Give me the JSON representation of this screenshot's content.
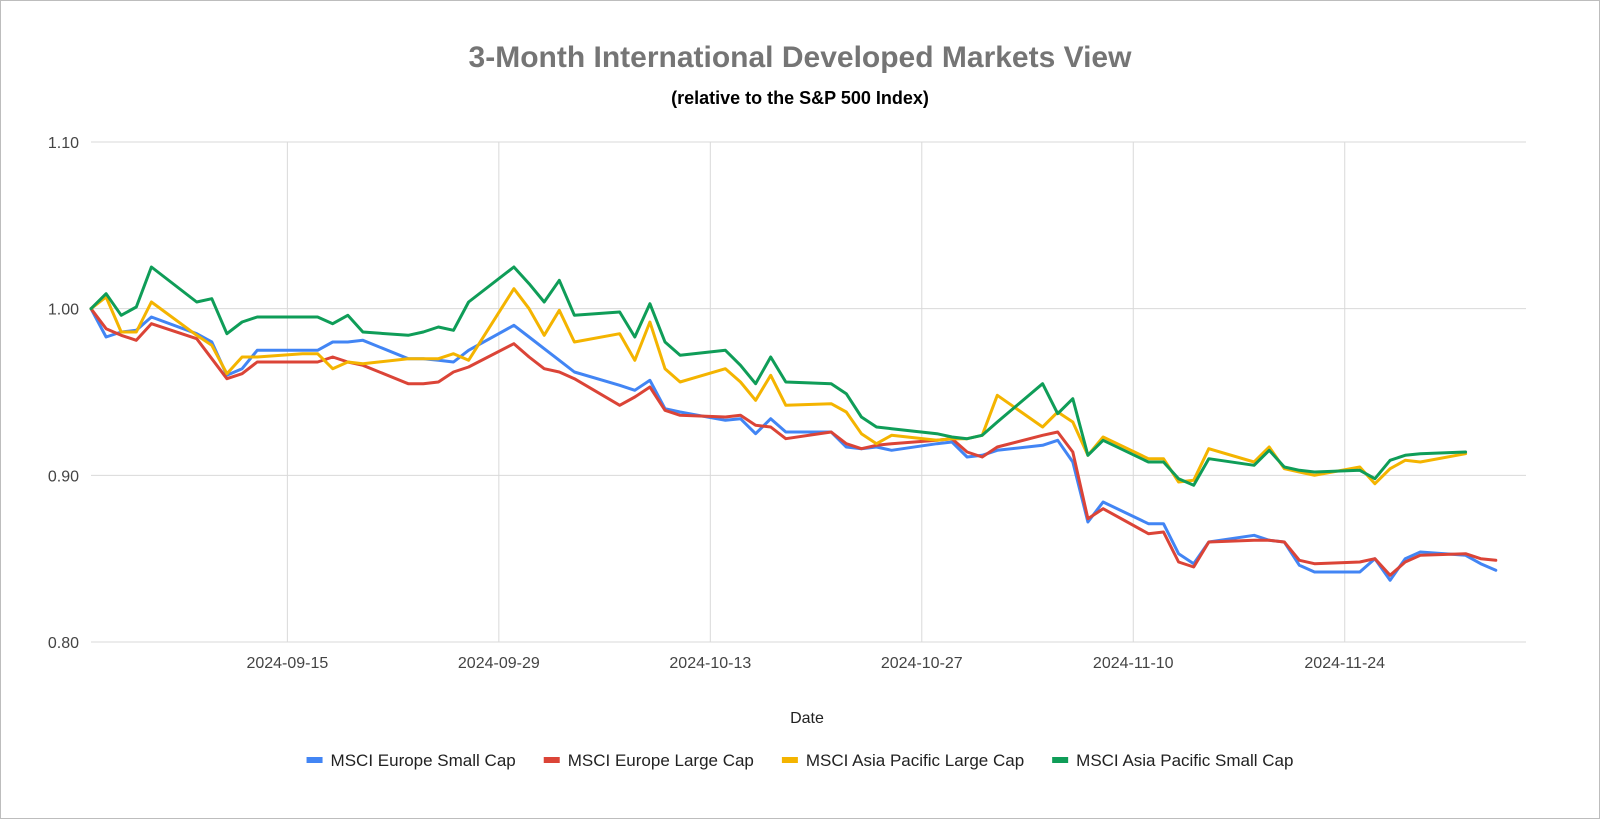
{
  "chart_data": {
    "type": "line",
    "title": "3-Month International Developed Markets View",
    "subtitle": "(relative to the S&P 500 Index)",
    "xlabel": "Date",
    "ylabel": "",
    "ylim": [
      0.8,
      1.1
    ],
    "yticks": [
      "0.80",
      "0.90",
      "1.00",
      "1.10"
    ],
    "xlim": [
      "2024-09-02",
      "2024-12-06"
    ],
    "xticks": [
      "2024-09-15",
      "2024-09-29",
      "2024-10-13",
      "2024-10-27",
      "2024-11-10",
      "2024-11-24"
    ],
    "grid": true,
    "legend_position": "bottom",
    "series": [
      {
        "name": "MSCI Europe Small Cap",
        "color": "#4285f4",
        "points": [
          [
            "2024-09-02",
            1.0
          ],
          [
            "2024-09-03",
            0.983
          ],
          [
            "2024-09-04",
            0.986
          ],
          [
            "2024-09-05",
            0.987
          ],
          [
            "2024-09-06",
            0.995
          ],
          [
            "2024-09-09",
            0.985
          ],
          [
            "2024-09-10",
            0.98
          ],
          [
            "2024-09-11",
            0.96
          ],
          [
            "2024-09-12",
            0.964
          ],
          [
            "2024-09-13",
            0.975
          ],
          [
            "2024-09-16",
            0.975
          ],
          [
            "2024-09-17",
            0.975
          ],
          [
            "2024-09-18",
            0.98
          ],
          [
            "2024-09-19",
            0.98
          ],
          [
            "2024-09-20",
            0.981
          ],
          [
            "2024-09-23",
            0.97
          ],
          [
            "2024-09-24",
            0.97
          ],
          [
            "2024-09-25",
            0.969
          ],
          [
            "2024-09-26",
            0.968
          ],
          [
            "2024-09-27",
            0.975
          ],
          [
            "2024-09-30",
            0.99
          ],
          [
            "2024-10-01",
            0.983
          ],
          [
            "2024-10-02",
            0.976
          ],
          [
            "2024-10-03",
            0.969
          ],
          [
            "2024-10-04",
            0.962
          ],
          [
            "2024-10-07",
            0.954
          ],
          [
            "2024-10-08",
            0.951
          ],
          [
            "2024-10-09",
            0.957
          ],
          [
            "2024-10-10",
            0.94
          ],
          [
            "2024-10-11",
            0.938
          ],
          [
            "2024-10-14",
            0.933
          ],
          [
            "2024-10-15",
            0.934
          ],
          [
            "2024-10-16",
            0.925
          ],
          [
            "2024-10-17",
            0.934
          ],
          [
            "2024-10-18",
            0.926
          ],
          [
            "2024-10-21",
            0.926
          ],
          [
            "2024-10-22",
            0.917
          ],
          [
            "2024-10-23",
            0.916
          ],
          [
            "2024-10-24",
            0.917
          ],
          [
            "2024-10-25",
            0.915
          ],
          [
            "2024-10-28",
            0.919
          ],
          [
            "2024-10-29",
            0.92
          ],
          [
            "2024-10-30",
            0.911
          ],
          [
            "2024-10-31",
            0.912
          ],
          [
            "2024-11-01",
            0.915
          ],
          [
            "2024-11-04",
            0.918
          ],
          [
            "2024-11-05",
            0.921
          ],
          [
            "2024-11-06",
            0.908
          ],
          [
            "2024-11-07",
            0.872
          ],
          [
            "2024-11-08",
            0.884
          ],
          [
            "2024-11-11",
            0.871
          ],
          [
            "2024-11-12",
            0.871
          ],
          [
            "2024-11-13",
            0.853
          ],
          [
            "2024-11-14",
            0.847
          ],
          [
            "2024-11-15",
            0.86
          ],
          [
            "2024-11-18",
            0.864
          ],
          [
            "2024-11-19",
            0.861
          ],
          [
            "2024-11-20",
            0.86
          ],
          [
            "2024-11-21",
            0.846
          ],
          [
            "2024-11-22",
            0.842
          ],
          [
            "2024-11-25",
            0.842
          ],
          [
            "2024-11-26",
            0.85
          ],
          [
            "2024-11-27",
            0.837
          ],
          [
            "2024-11-28",
            0.85
          ],
          [
            "2024-11-29",
            0.854
          ],
          [
            "2024-12-02",
            0.852
          ],
          [
            "2024-12-03",
            0.847
          ],
          [
            "2024-12-04",
            0.843
          ]
        ]
      },
      {
        "name": "MSCI Europe Large Cap",
        "color": "#db4437",
        "points": [
          [
            "2024-09-02",
            1.0
          ],
          [
            "2024-09-03",
            0.988
          ],
          [
            "2024-09-04",
            0.984
          ],
          [
            "2024-09-05",
            0.981
          ],
          [
            "2024-09-06",
            0.991
          ],
          [
            "2024-09-09",
            0.982
          ],
          [
            "2024-09-10",
            0.97
          ],
          [
            "2024-09-11",
            0.958
          ],
          [
            "2024-09-12",
            0.961
          ],
          [
            "2024-09-13",
            0.968
          ],
          [
            "2024-09-16",
            0.968
          ],
          [
            "2024-09-17",
            0.968
          ],
          [
            "2024-09-18",
            0.971
          ],
          [
            "2024-09-19",
            0.968
          ],
          [
            "2024-09-20",
            0.966
          ],
          [
            "2024-09-23",
            0.955
          ],
          [
            "2024-09-24",
            0.955
          ],
          [
            "2024-09-25",
            0.956
          ],
          [
            "2024-09-26",
            0.962
          ],
          [
            "2024-09-27",
            0.965
          ],
          [
            "2024-09-30",
            0.979
          ],
          [
            "2024-10-01",
            0.971
          ],
          [
            "2024-10-02",
            0.964
          ],
          [
            "2024-10-03",
            0.962
          ],
          [
            "2024-10-04",
            0.958
          ],
          [
            "2024-10-07",
            0.942
          ],
          [
            "2024-10-08",
            0.947
          ],
          [
            "2024-10-09",
            0.953
          ],
          [
            "2024-10-10",
            0.939
          ],
          [
            "2024-10-11",
            0.936
          ],
          [
            "2024-10-14",
            0.935
          ],
          [
            "2024-10-15",
            0.936
          ],
          [
            "2024-10-16",
            0.93
          ],
          [
            "2024-10-17",
            0.929
          ],
          [
            "2024-10-18",
            0.922
          ],
          [
            "2024-10-21",
            0.926
          ],
          [
            "2024-10-22",
            0.919
          ],
          [
            "2024-10-23",
            0.916
          ],
          [
            "2024-10-24",
            0.918
          ],
          [
            "2024-10-25",
            0.919
          ],
          [
            "2024-10-28",
            0.921
          ],
          [
            "2024-10-29",
            0.922
          ],
          [
            "2024-10-30",
            0.914
          ],
          [
            "2024-10-31",
            0.911
          ],
          [
            "2024-11-01",
            0.917
          ],
          [
            "2024-11-04",
            0.924
          ],
          [
            "2024-11-05",
            0.926
          ],
          [
            "2024-11-06",
            0.914
          ],
          [
            "2024-11-07",
            0.874
          ],
          [
            "2024-11-08",
            0.88
          ],
          [
            "2024-11-11",
            0.865
          ],
          [
            "2024-11-12",
            0.866
          ],
          [
            "2024-11-13",
            0.848
          ],
          [
            "2024-11-14",
            0.845
          ],
          [
            "2024-11-15",
            0.86
          ],
          [
            "2024-11-18",
            0.861
          ],
          [
            "2024-11-19",
            0.861
          ],
          [
            "2024-11-20",
            0.86
          ],
          [
            "2024-11-21",
            0.849
          ],
          [
            "2024-11-22",
            0.847
          ],
          [
            "2024-11-25",
            0.848
          ],
          [
            "2024-11-26",
            0.85
          ],
          [
            "2024-11-27",
            0.84
          ],
          [
            "2024-11-28",
            0.848
          ],
          [
            "2024-11-29",
            0.852
          ],
          [
            "2024-12-02",
            0.853
          ],
          [
            "2024-12-03",
            0.85
          ],
          [
            "2024-12-04",
            0.849
          ]
        ]
      },
      {
        "name": "MSCI Asia Pacific Large Cap",
        "color": "#f4b400",
        "points": [
          [
            "2024-09-02",
            1.0
          ],
          [
            "2024-09-03",
            1.007
          ],
          [
            "2024-09-04",
            0.986
          ],
          [
            "2024-09-05",
            0.986
          ],
          [
            "2024-09-06",
            1.004
          ],
          [
            "2024-09-09",
            0.984
          ],
          [
            "2024-09-10",
            0.978
          ],
          [
            "2024-09-11",
            0.961
          ],
          [
            "2024-09-12",
            0.971
          ],
          [
            "2024-09-13",
            0.971
          ],
          [
            "2024-09-16",
            0.973
          ],
          [
            "2024-09-17",
            0.973
          ],
          [
            "2024-09-18",
            0.964
          ],
          [
            "2024-09-19",
            0.968
          ],
          [
            "2024-09-20",
            0.967
          ],
          [
            "2024-09-23",
            0.97
          ],
          [
            "2024-09-24",
            0.97
          ],
          [
            "2024-09-25",
            0.97
          ],
          [
            "2024-09-26",
            0.973
          ],
          [
            "2024-09-27",
            0.969
          ],
          [
            "2024-09-30",
            1.012
          ],
          [
            "2024-10-01",
            1.0
          ],
          [
            "2024-10-02",
            0.984
          ],
          [
            "2024-10-03",
            0.999
          ],
          [
            "2024-10-04",
            0.98
          ],
          [
            "2024-10-07",
            0.985
          ],
          [
            "2024-10-08",
            0.969
          ],
          [
            "2024-10-09",
            0.992
          ],
          [
            "2024-10-10",
            0.964
          ],
          [
            "2024-10-11",
            0.956
          ],
          [
            "2024-10-14",
            0.964
          ],
          [
            "2024-10-15",
            0.956
          ],
          [
            "2024-10-16",
            0.945
          ],
          [
            "2024-10-17",
            0.96
          ],
          [
            "2024-10-18",
            0.942
          ],
          [
            "2024-10-21",
            0.943
          ],
          [
            "2024-10-22",
            0.938
          ],
          [
            "2024-10-23",
            0.925
          ],
          [
            "2024-10-24",
            0.919
          ],
          [
            "2024-10-25",
            0.924
          ],
          [
            "2024-10-28",
            0.921
          ],
          [
            "2024-10-29",
            0.922
          ],
          [
            "2024-10-30",
            0.922
          ],
          [
            "2024-10-31",
            0.924
          ],
          [
            "2024-11-01",
            0.948
          ],
          [
            "2024-11-04",
            0.929
          ],
          [
            "2024-11-05",
            0.938
          ],
          [
            "2024-11-06",
            0.932
          ],
          [
            "2024-11-07",
            0.912
          ],
          [
            "2024-11-08",
            0.923
          ],
          [
            "2024-11-11",
            0.91
          ],
          [
            "2024-11-12",
            0.91
          ],
          [
            "2024-11-13",
            0.896
          ],
          [
            "2024-11-14",
            0.897
          ],
          [
            "2024-11-15",
            0.916
          ],
          [
            "2024-11-18",
            0.908
          ],
          [
            "2024-11-19",
            0.917
          ],
          [
            "2024-11-20",
            0.904
          ],
          [
            "2024-11-21",
            0.902
          ],
          [
            "2024-11-22",
            0.9
          ],
          [
            "2024-11-25",
            0.905
          ],
          [
            "2024-11-26",
            0.895
          ],
          [
            "2024-11-27",
            0.904
          ],
          [
            "2024-11-28",
            0.909
          ],
          [
            "2024-11-29",
            0.908
          ],
          [
            "2024-12-02",
            0.913
          ]
        ]
      },
      {
        "name": "MSCI Asia Pacific Small Cap",
        "color": "#0f9d58",
        "points": [
          [
            "2024-09-02",
            1.0
          ],
          [
            "2024-09-03",
            1.009
          ],
          [
            "2024-09-04",
            0.996
          ],
          [
            "2024-09-05",
            1.001
          ],
          [
            "2024-09-06",
            1.025
          ],
          [
            "2024-09-09",
            1.004
          ],
          [
            "2024-09-10",
            1.006
          ],
          [
            "2024-09-11",
            0.985
          ],
          [
            "2024-09-12",
            0.992
          ],
          [
            "2024-09-13",
            0.995
          ],
          [
            "2024-09-16",
            0.995
          ],
          [
            "2024-09-17",
            0.995
          ],
          [
            "2024-09-18",
            0.991
          ],
          [
            "2024-09-19",
            0.996
          ],
          [
            "2024-09-20",
            0.986
          ],
          [
            "2024-09-23",
            0.984
          ],
          [
            "2024-09-24",
            0.986
          ],
          [
            "2024-09-25",
            0.989
          ],
          [
            "2024-09-26",
            0.987
          ],
          [
            "2024-09-27",
            1.004
          ],
          [
            "2024-09-30",
            1.025
          ],
          [
            "2024-10-01",
            1.015
          ],
          [
            "2024-10-02",
            1.004
          ],
          [
            "2024-10-03",
            1.017
          ],
          [
            "2024-10-04",
            0.996
          ],
          [
            "2024-10-07",
            0.998
          ],
          [
            "2024-10-08",
            0.983
          ],
          [
            "2024-10-09",
            1.003
          ],
          [
            "2024-10-10",
            0.98
          ],
          [
            "2024-10-11",
            0.972
          ],
          [
            "2024-10-14",
            0.975
          ],
          [
            "2024-10-15",
            0.966
          ],
          [
            "2024-10-16",
            0.955
          ],
          [
            "2024-10-17",
            0.971
          ],
          [
            "2024-10-18",
            0.956
          ],
          [
            "2024-10-21",
            0.955
          ],
          [
            "2024-10-22",
            0.949
          ],
          [
            "2024-10-23",
            0.935
          ],
          [
            "2024-10-24",
            0.929
          ],
          [
            "2024-10-25",
            0.928
          ],
          [
            "2024-10-28",
            0.925
          ],
          [
            "2024-10-29",
            0.923
          ],
          [
            "2024-10-30",
            0.922
          ],
          [
            "2024-10-31",
            0.924
          ],
          [
            "2024-11-01",
            0.932
          ],
          [
            "2024-11-04",
            0.955
          ],
          [
            "2024-11-05",
            0.937
          ],
          [
            "2024-11-06",
            0.946
          ],
          [
            "2024-11-07",
            0.912
          ],
          [
            "2024-11-08",
            0.921
          ],
          [
            "2024-11-11",
            0.908
          ],
          [
            "2024-11-12",
            0.908
          ],
          [
            "2024-11-13",
            0.898
          ],
          [
            "2024-11-14",
            0.894
          ],
          [
            "2024-11-15",
            0.91
          ],
          [
            "2024-11-18",
            0.906
          ],
          [
            "2024-11-19",
            0.915
          ],
          [
            "2024-11-20",
            0.905
          ],
          [
            "2024-11-21",
            0.903
          ],
          [
            "2024-11-22",
            0.902
          ],
          [
            "2024-11-25",
            0.903
          ],
          [
            "2024-11-26",
            0.898
          ],
          [
            "2024-11-27",
            0.909
          ],
          [
            "2024-11-28",
            0.912
          ],
          [
            "2024-11-29",
            0.913
          ],
          [
            "2024-12-02",
            0.914
          ]
        ]
      }
    ]
  }
}
